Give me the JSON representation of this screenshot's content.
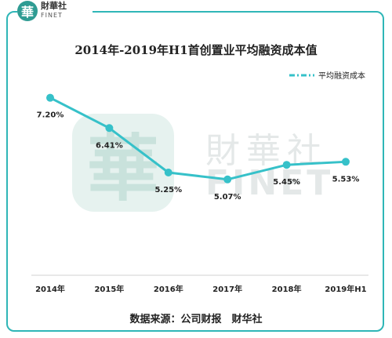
{
  "brand": {
    "logo_mark": "華",
    "name_cn": "財華社",
    "name_en": "FINET"
  },
  "watermark": {
    "mark": "華",
    "name_cn": "財華社",
    "name_en": "FINET"
  },
  "footer": {
    "source": "数据来源：公司财报　财华社"
  },
  "colors": {
    "accent": "#2fb6b7",
    "line": "#36c1c9",
    "text": "#222222"
  },
  "chart_data": {
    "type": "line",
    "title": "2014年-2019年H1首创置业平均融资成本值",
    "xlabel": "",
    "ylabel": "",
    "categories": [
      "2014年",
      "2015年",
      "2016年",
      "2017年",
      "2018年",
      "2019年H1"
    ],
    "series": [
      {
        "name": "平均融资成本",
        "values": [
          7.2,
          6.41,
          5.25,
          5.07,
          5.45,
          5.53
        ],
        "labels": [
          "7.20%",
          "6.41%",
          "5.25%",
          "5.07%",
          "5.45%",
          "5.53%"
        ]
      }
    ],
    "ylim": [
      3.0,
      7.5
    ],
    "grid": false,
    "legend_position": "top-right"
  }
}
